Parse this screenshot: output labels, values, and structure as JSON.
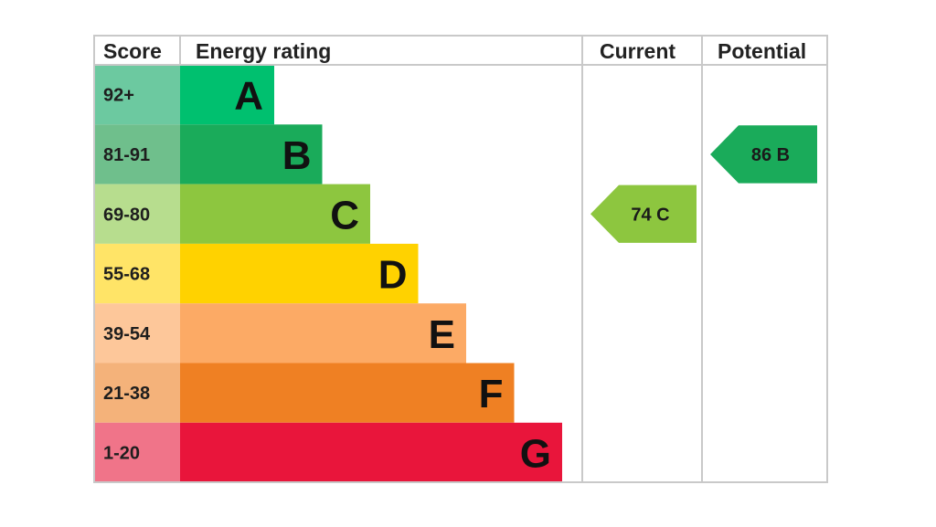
{
  "chart_data": {
    "type": "table",
    "headers": {
      "score": "Score",
      "rating": "Energy rating",
      "current": "Current",
      "potential": "Potential"
    },
    "bands": [
      {
        "letter": "A",
        "range": "92+",
        "color": "#00c06f",
        "score_bg": "#6cc9a0"
      },
      {
        "letter": "B",
        "range": "81-91",
        "color": "#1aab5a",
        "score_bg": "#6fbf8c"
      },
      {
        "letter": "C",
        "range": "69-80",
        "color": "#8dc63f",
        "score_bg": "#b7dd8e"
      },
      {
        "letter": "D",
        "range": "55-68",
        "color": "#ffd200",
        "score_bg": "#ffe467"
      },
      {
        "letter": "E",
        "range": "39-54",
        "color": "#fcaa65",
        "score_bg": "#fdc79a"
      },
      {
        "letter": "F",
        "range": "21-38",
        "color": "#ef8023",
        "score_bg": "#f4b27a"
      },
      {
        "letter": "G",
        "range": "1-20",
        "color": "#e9153b",
        "score_bg": "#f07489"
      }
    ],
    "current": {
      "value": 74,
      "band": "C",
      "label": "74  C"
    },
    "potential": {
      "value": 86,
      "band": "B",
      "label": "86  B"
    }
  }
}
